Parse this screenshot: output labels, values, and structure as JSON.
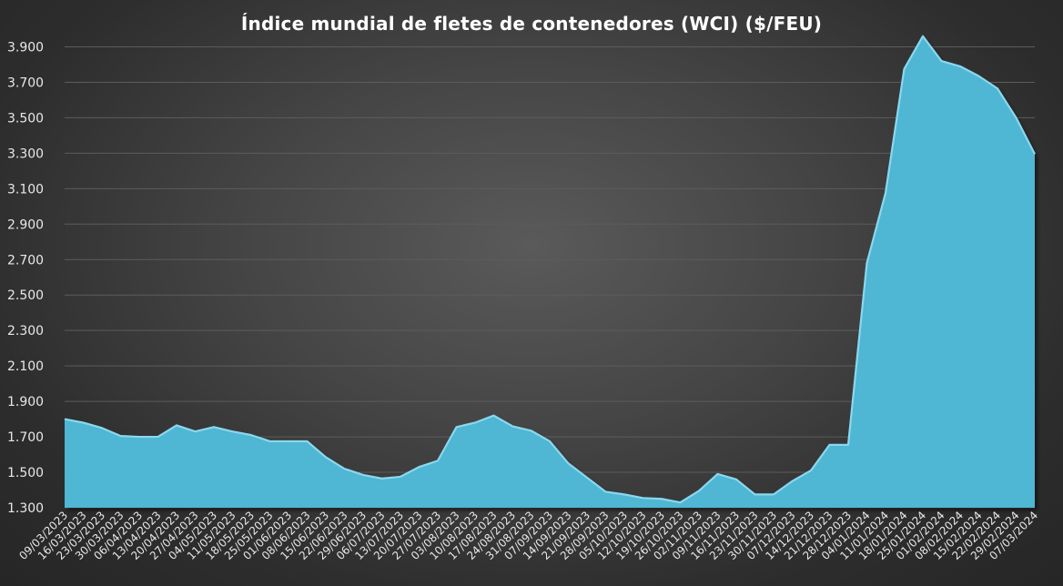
{
  "chart_data": {
    "type": "area",
    "title": "Índice mundial de fletes de contenedores (WCI) ($/FEU)",
    "xlabel": "",
    "ylabel": "",
    "ylim": [
      1300,
      4000
    ],
    "yticks": [
      1300,
      1500,
      1700,
      1900,
      2100,
      2300,
      2500,
      2700,
      2900,
      3100,
      3300,
      3500,
      3700,
      3900
    ],
    "ytick_labels": [
      "1.300",
      "1.500",
      "1.700",
      "1.900",
      "2.100",
      "2.300",
      "2.500",
      "2.700",
      "2.900",
      "3.100",
      "3.300",
      "3.500",
      "3.700",
      "3.900"
    ],
    "grid": true,
    "legend": "none",
    "colors": {
      "fill": "#4fb6d4",
      "edge": "#8ad8ee",
      "grid": "#5c5c5c",
      "text": "#e8e8e8"
    },
    "categories": [
      "09/03/2023",
      "16/03/2023",
      "23/03/2023",
      "30/03/2023",
      "06/04/2023",
      "13/04/2023",
      "20/04/2023",
      "27/04/2023",
      "04/05/2023",
      "11/05/2023",
      "18/05/2023",
      "25/05/2023",
      "01/06/2023",
      "08/06/2023",
      "15/06/2023",
      "22/06/2023",
      "29/06/2023",
      "06/07/2023",
      "13/07/2023",
      "20/07/2023",
      "27/07/2023",
      "03/08/2023",
      "10/08/2023",
      "17/08/2023",
      "24/08/2023",
      "31/08/2023",
      "07/09/2023",
      "14/09/2023",
      "21/09/2023",
      "28/09/2023",
      "05/10/2023",
      "12/10/2023",
      "19/10/2023",
      "26/10/2023",
      "02/11/2023",
      "09/11/2023",
      "16/11/2023",
      "23/11/2023",
      "30/11/2023",
      "07/12/2023",
      "14/12/2023",
      "21/12/2023",
      "28/12/2023",
      "04/01/2024",
      "11/01/2024",
      "18/01/2024",
      "25/01/2024",
      "01/02/2024",
      "08/02/2024",
      "15/02/2024",
      "22/02/2024",
      "29/02/2024",
      "07/03/2024"
    ],
    "series": [
      {
        "values": [
          1800,
          1780,
          1750,
          1705,
          1700,
          1700,
          1765,
          1730,
          1755,
          1730,
          1710,
          1675,
          1675,
          1675,
          1585,
          1520,
          1485,
          1465,
          1475,
          1530,
          1565,
          1755,
          1780,
          1820,
          1760,
          1735,
          1675,
          1550,
          1470,
          1390,
          1375,
          1355,
          1350,
          1330,
          1395,
          1490,
          1460,
          1375,
          1375,
          1450,
          1510,
          1655,
          1655,
          2680,
          3075,
          3775,
          3960,
          3820,
          3790,
          3735,
          3665,
          3500,
          3295
        ]
      }
    ]
  }
}
